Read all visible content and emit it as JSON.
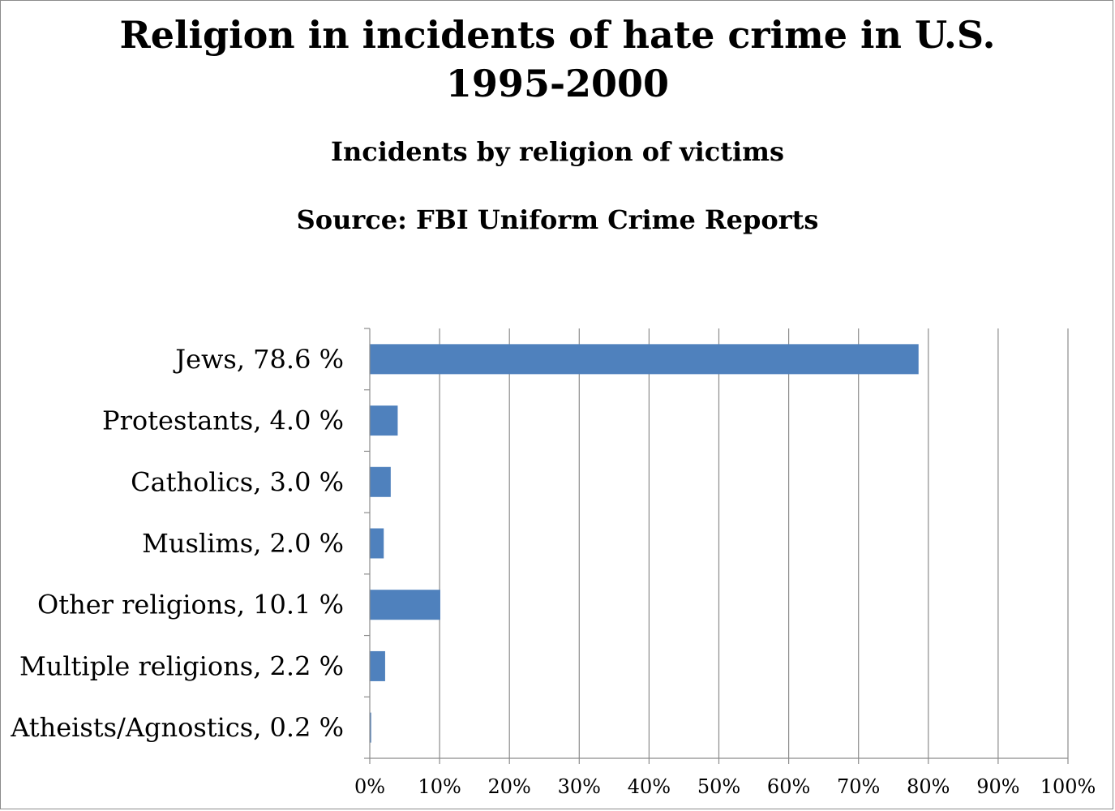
{
  "chart_data": {
    "type": "bar",
    "orientation": "horizontal",
    "title": [
      "Religion in incidents of hate crime in U.S.",
      "1995-2000"
    ],
    "subtitle": "Incidents by religion of victims",
    "source": "Source: FBI Uniform Crime Reports",
    "categories": [
      "Jews, 78.6 %",
      "Protestants, 4.0 %",
      "Catholics, 3.0 %",
      "Muslims, 2.0 %",
      "Other religions, 10.1 %",
      "Multiple religions, 2.2 %",
      "Atheists/Agnostics, 0.2 %"
    ],
    "values": [
      78.6,
      4.0,
      3.0,
      2.0,
      10.1,
      2.2,
      0.2
    ],
    "xlim": [
      0,
      100
    ],
    "xticks": [
      "0%",
      "10%",
      "20%",
      "30%",
      "40%",
      "50%",
      "60%",
      "70%",
      "80%",
      "90%",
      "100%"
    ],
    "xtick_values": [
      0,
      10,
      20,
      30,
      40,
      50,
      60,
      70,
      80,
      90,
      100
    ],
    "grid": "vertical",
    "legend": "none",
    "bar_color": "#4f81bd"
  }
}
